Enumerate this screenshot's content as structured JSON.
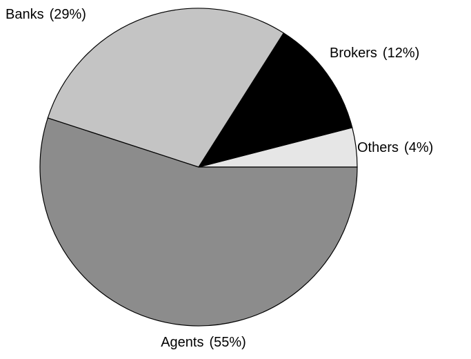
{
  "chart_data": {
    "type": "pie",
    "categories": [
      "Others",
      "Brokers",
      "Banks",
      "Agents"
    ],
    "values": [
      4,
      12,
      29,
      55
    ],
    "value_labels": [
      "(4%)",
      "(12%)",
      "(29%)",
      "(55%)"
    ],
    "colors": [
      "#e6e6e6",
      "#000000",
      "#c4c4c4",
      "#8c8c8c"
    ]
  }
}
